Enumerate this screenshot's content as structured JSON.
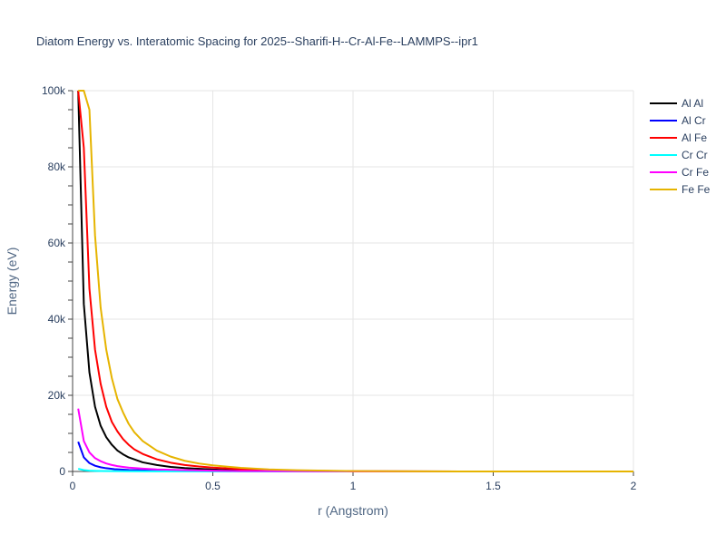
{
  "chart_data": {
    "type": "line",
    "title": "Diatom Energy vs. Interatomic Spacing for 2025--Sharifi-H--Cr-Al-Fe--LAMMPS--ipr1",
    "xlabel": "r (Angstrom)",
    "ylabel": "Energy (eV)",
    "xlim": [
      0,
      2
    ],
    "ylim": [
      0,
      100000
    ],
    "x_ticks": [
      0,
      0.5,
      1,
      1.5,
      2
    ],
    "x_tick_labels": [
      "0",
      "0.5",
      "1",
      "1.5",
      "2"
    ],
    "y_ticks": [
      0,
      20000,
      40000,
      60000,
      80000,
      100000
    ],
    "y_tick_labels": [
      "0",
      "20k",
      "40k",
      "60k",
      "80k",
      "100k"
    ],
    "grid": true,
    "legend_position": "right",
    "series": [
      {
        "name": "Al Al",
        "color": "#000000",
        "x": [
          0.02,
          0.04,
          0.06,
          0.08,
          0.1,
          0.12,
          0.14,
          0.16,
          0.18,
          0.2,
          0.25,
          0.3,
          0.35,
          0.4,
          0.5,
          0.6,
          0.8,
          1.0,
          1.5,
          2.0
        ],
        "y": [
          100000,
          44000,
          26000,
          17000,
          12000,
          9000,
          7000,
          5500,
          4500,
          3700,
          2400,
          1700,
          1200,
          900,
          500,
          250,
          80,
          20,
          0,
          0
        ]
      },
      {
        "name": "Al Cr",
        "color": "#0000ff",
        "x": [
          0.02,
          0.04,
          0.06,
          0.08,
          0.1,
          0.12,
          0.15,
          0.2,
          0.25,
          0.3,
          0.4,
          0.5,
          0.6,
          0.8,
          1.0,
          1.5,
          2.0
        ],
        "y": [
          7800,
          3700,
          2200,
          1500,
          1100,
          850,
          600,
          400,
          300,
          230,
          150,
          100,
          60,
          20,
          5,
          0,
          0
        ]
      },
      {
        "name": "Al Fe",
        "color": "#ff0000",
        "x": [
          0.02,
          0.04,
          0.06,
          0.08,
          0.1,
          0.12,
          0.14,
          0.16,
          0.18,
          0.2,
          0.22,
          0.25,
          0.3,
          0.35,
          0.4,
          0.45,
          0.5,
          0.6,
          0.7,
          0.8,
          1.0,
          1.5,
          2.0
        ],
        "y": [
          100000,
          85000,
          48000,
          32000,
          23000,
          17000,
          13000,
          10500,
          8500,
          7000,
          5800,
          4600,
          3200,
          2300,
          1700,
          1300,
          1000,
          600,
          350,
          200,
          60,
          0,
          0
        ]
      },
      {
        "name": "Cr Cr",
        "color": "#00ffff",
        "x": [
          0.02,
          0.04,
          0.06,
          0.08,
          0.1,
          0.15,
          0.2,
          0.3,
          0.5,
          0.8,
          1.0,
          1.5,
          2.0
        ],
        "y": [
          700,
          350,
          220,
          160,
          120,
          80,
          60,
          40,
          20,
          8,
          3,
          0,
          0
        ]
      },
      {
        "name": "Cr Fe",
        "color": "#ff00ff",
        "x": [
          0.02,
          0.04,
          0.06,
          0.08,
          0.1,
          0.12,
          0.14,
          0.16,
          0.18,
          0.2,
          0.25,
          0.3,
          0.4,
          0.5,
          0.6,
          0.8,
          1.0,
          1.5,
          2.0
        ],
        "y": [
          16500,
          8000,
          5000,
          3500,
          2700,
          2100,
          1700,
          1400,
          1200,
          1000,
          750,
          550,
          350,
          220,
          130,
          50,
          15,
          0,
          0
        ]
      },
      {
        "name": "Fe Fe",
        "color": "#e6b400",
        "x": [
          0.02,
          0.04,
          0.06,
          0.08,
          0.1,
          0.12,
          0.14,
          0.16,
          0.18,
          0.2,
          0.22,
          0.25,
          0.3,
          0.35,
          0.4,
          0.45,
          0.5,
          0.6,
          0.7,
          0.8,
          1.0,
          1.2,
          1.5,
          2.0
        ],
        "y": [
          100000,
          100000,
          95000,
          62000,
          43000,
          32000,
          24500,
          19000,
          15500,
          12500,
          10300,
          8000,
          5500,
          3900,
          2800,
          2100,
          1600,
          950,
          550,
          320,
          100,
          30,
          0,
          0
        ]
      }
    ]
  }
}
